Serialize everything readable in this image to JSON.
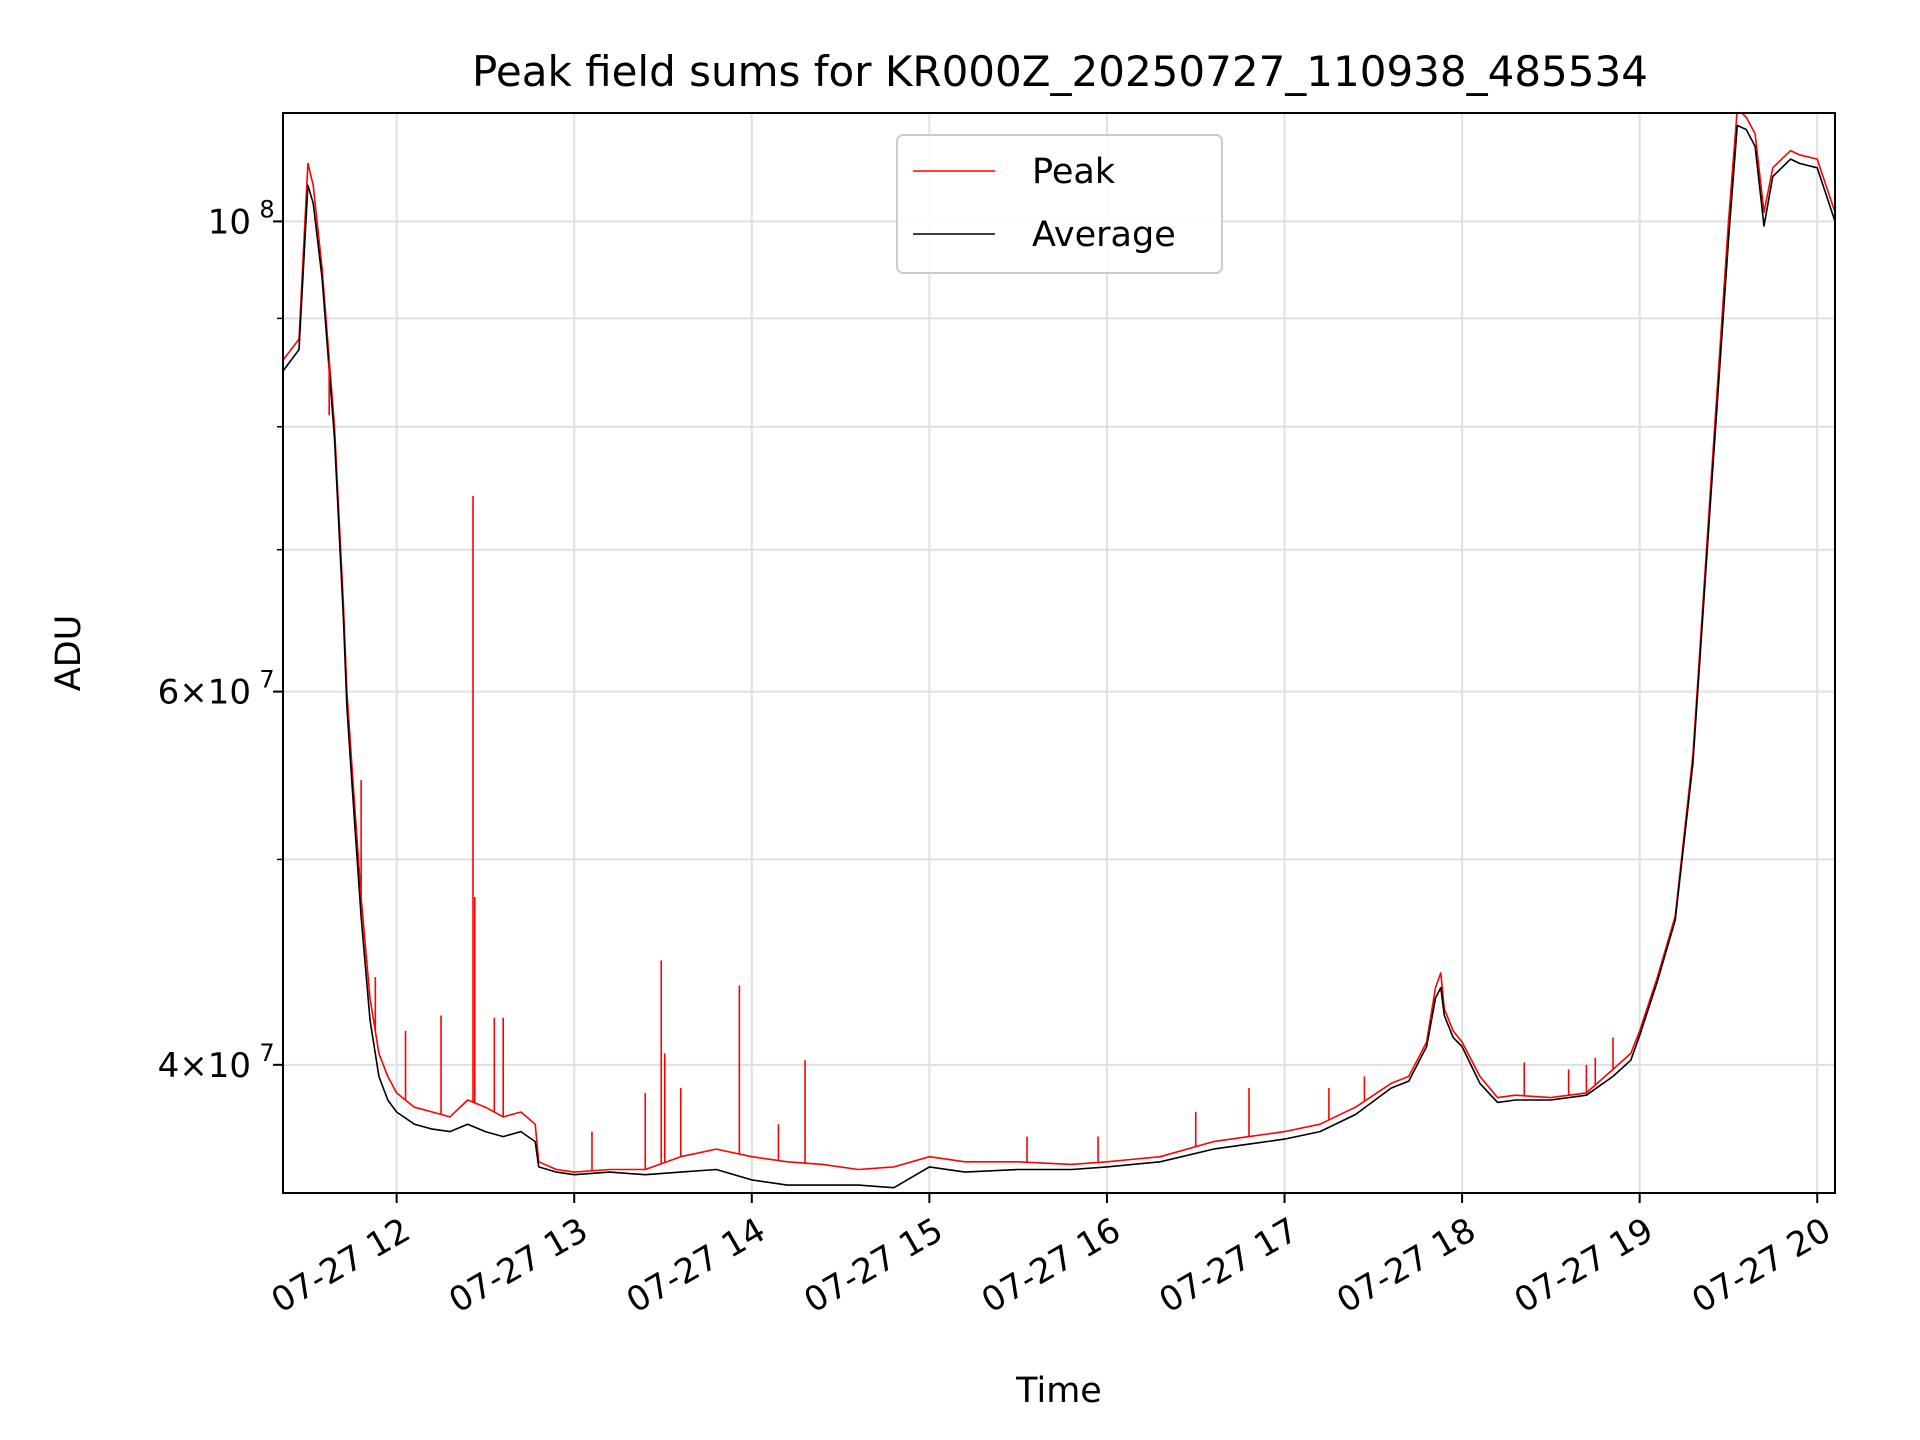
{
  "chart_data": {
    "type": "line",
    "title": "Peak field sums for KR000Z_20250727_110938_485534",
    "xlabel": "Time",
    "ylabel": "ADU",
    "x_unit": "hours (2025-07-27)",
    "xlim": [
      11.36,
      20.1
    ],
    "ylim": [
      34800000,
      112500000
    ],
    "yscale": "log",
    "grid": true,
    "legend_position": "top-center",
    "x_ticks": [
      {
        "value": 12,
        "label": "07-27 12"
      },
      {
        "value": 13,
        "label": "07-27 13"
      },
      {
        "value": 14,
        "label": "07-27 14"
      },
      {
        "value": 15,
        "label": "07-27 15"
      },
      {
        "value": 16,
        "label": "07-27 16"
      },
      {
        "value": 17,
        "label": "07-27 17"
      },
      {
        "value": 18,
        "label": "07-27 18"
      },
      {
        "value": 19,
        "label": "07-27 19"
      },
      {
        "value": 20,
        "label": "07-27 20"
      }
    ],
    "y_ticks": [
      {
        "value": 40000000,
        "base": "4",
        "exp": "7",
        "format": "sci"
      },
      {
        "value": 60000000,
        "base": "6",
        "exp": "7",
        "format": "sci"
      },
      {
        "value": 100000000,
        "base": "10",
        "exp": "8",
        "format": "pow"
      }
    ],
    "y_minor_ticks": [
      50000000,
      70000000,
      80000000,
      90000000
    ],
    "series": [
      {
        "name": "Peak",
        "color": "#ff0000",
        "x": [
          11.36,
          11.45,
          11.5,
          11.53,
          11.58,
          11.65,
          11.7,
          11.72,
          11.75,
          11.8,
          11.85,
          11.9,
          11.95,
          12.0,
          12.1,
          12.2,
          12.3,
          12.4,
          12.5,
          12.6,
          12.7,
          12.78,
          12.8,
          12.9,
          13.0,
          13.2,
          13.4,
          13.6,
          13.8,
          14.0,
          14.2,
          14.4,
          14.6,
          14.8,
          15.0,
          15.2,
          15.5,
          15.8,
          16.0,
          16.3,
          16.6,
          16.8,
          17.0,
          17.2,
          17.4,
          17.6,
          17.7,
          17.8,
          17.85,
          17.88,
          17.9,
          17.95,
          18.0,
          18.1,
          18.2,
          18.3,
          18.5,
          18.7,
          18.85,
          18.95,
          19.0,
          19.1,
          19.2,
          19.3,
          19.4,
          19.5,
          19.55,
          19.6,
          19.65,
          19.7,
          19.75,
          19.8,
          19.85,
          19.9,
          20.0,
          20.1
        ],
        "y": [
          86000000,
          88000000,
          106500000,
          104000000,
          95000000,
          80000000,
          66000000,
          60000000,
          55000000,
          48000000,
          43000000,
          40500000,
          39500000,
          38800000,
          38200000,
          38000000,
          37800000,
          38500000,
          38200000,
          37800000,
          38000000,
          37500000,
          36000000,
          35700000,
          35600000,
          35700000,
          35700000,
          36200000,
          36500000,
          36200000,
          36000000,
          35900000,
          35700000,
          35800000,
          36200000,
          36000000,
          36000000,
          35900000,
          36000000,
          36200000,
          36800000,
          37000000,
          37200000,
          37500000,
          38200000,
          39200000,
          39500000,
          41000000,
          43500000,
          44200000,
          42500000,
          41500000,
          41000000,
          39500000,
          38600000,
          38700000,
          38600000,
          38800000,
          39800000,
          40500000,
          41500000,
          44000000,
          47000000,
          56000000,
          75000000,
          100000000,
          113000000,
          112000000,
          110000000,
          101000000,
          106000000,
          107000000,
          108000000,
          107500000,
          107000000,
          101000000
        ]
      },
      {
        "name": "Average",
        "color": "#000000",
        "x": [
          11.36,
          11.45,
          11.5,
          11.53,
          11.58,
          11.65,
          11.7,
          11.72,
          11.75,
          11.8,
          11.85,
          11.9,
          11.95,
          12.0,
          12.1,
          12.2,
          12.3,
          12.4,
          12.5,
          12.6,
          12.7,
          12.78,
          12.8,
          12.9,
          13.0,
          13.2,
          13.4,
          13.6,
          13.8,
          14.0,
          14.2,
          14.4,
          14.6,
          14.8,
          15.0,
          15.2,
          15.5,
          15.8,
          16.0,
          16.3,
          16.6,
          16.8,
          17.0,
          17.2,
          17.4,
          17.6,
          17.7,
          17.8,
          17.85,
          17.88,
          17.9,
          17.95,
          18.0,
          18.1,
          18.2,
          18.3,
          18.5,
          18.7,
          18.85,
          18.95,
          19.0,
          19.1,
          19.2,
          19.3,
          19.4,
          19.5,
          19.55,
          19.6,
          19.65,
          19.7,
          19.75,
          19.8,
          19.85,
          19.9,
          20.0,
          20.1
        ],
        "y": [
          85000000,
          87000000,
          104000000,
          102000000,
          94000000,
          79000000,
          65000000,
          59000000,
          54000000,
          47000000,
          42000000,
          39500000,
          38500000,
          38000000,
          37500000,
          37300000,
          37200000,
          37500000,
          37200000,
          37000000,
          37200000,
          36800000,
          35800000,
          35600000,
          35500000,
          35600000,
          35500000,
          35600000,
          35700000,
          35300000,
          35100000,
          35100000,
          35100000,
          35000000,
          35800000,
          35600000,
          35700000,
          35700000,
          35800000,
          36000000,
          36500000,
          36700000,
          36900000,
          37200000,
          37900000,
          39000000,
          39300000,
          40800000,
          43000000,
          43500000,
          42200000,
          41200000,
          40800000,
          39200000,
          38400000,
          38500000,
          38500000,
          38700000,
          39500000,
          40200000,
          41300000,
          43800000,
          46800000,
          55500000,
          74000000,
          98000000,
          111000000,
          110500000,
          108500000,
          99500000,
          105000000,
          106000000,
          107000000,
          106500000,
          106000000,
          100000000
        ]
      }
    ],
    "spikes": [
      {
        "x": 12.43,
        "y": 74200000
      },
      {
        "x": 12.44,
        "y": 48000000
      },
      {
        "x": 11.62,
        "y": 81000000
      },
      {
        "x": 11.8,
        "y": 54500000
      },
      {
        "x": 11.88,
        "y": 44000000
      },
      {
        "x": 12.05,
        "y": 41500000
      },
      {
        "x": 12.25,
        "y": 42200000
      },
      {
        "x": 12.55,
        "y": 42100000
      },
      {
        "x": 12.6,
        "y": 42100000
      },
      {
        "x": 13.49,
        "y": 44800000
      },
      {
        "x": 13.51,
        "y": 40500000
      },
      {
        "x": 13.93,
        "y": 43600000
      },
      {
        "x": 14.3,
        "y": 40200000
      },
      {
        "x": 13.1,
        "y": 37200000
      },
      {
        "x": 13.4,
        "y": 38800000
      },
      {
        "x": 13.6,
        "y": 39000000
      },
      {
        "x": 14.15,
        "y": 37500000
      },
      {
        "x": 15.55,
        "y": 37000000
      },
      {
        "x": 15.95,
        "y": 37000000
      },
      {
        "x": 16.5,
        "y": 38000000
      },
      {
        "x": 16.8,
        "y": 39000000
      },
      {
        "x": 17.25,
        "y": 39000000
      },
      {
        "x": 17.45,
        "y": 39500000
      },
      {
        "x": 18.35,
        "y": 40100000
      },
      {
        "x": 18.6,
        "y": 39800000
      },
      {
        "x": 18.7,
        "y": 40000000
      },
      {
        "x": 18.75,
        "y": 40300000
      },
      {
        "x": 18.85,
        "y": 41200000
      }
    ]
  }
}
